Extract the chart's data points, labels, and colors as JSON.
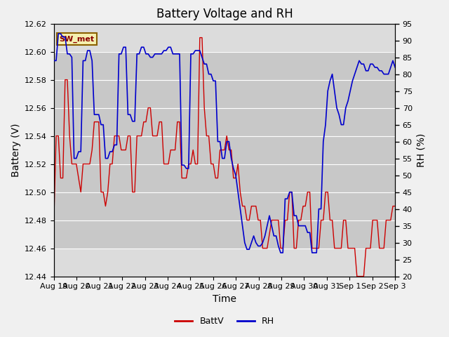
{
  "title": "Battery Voltage and RH",
  "xlabel": "Time",
  "ylabel_left": "Battery (V)",
  "ylabel_right": "RH (%)",
  "annotation": "SW_met",
  "ylim_left": [
    12.44,
    12.62
  ],
  "ylim_right": [
    20,
    95
  ],
  "yticks_left": [
    12.44,
    12.46,
    12.48,
    12.5,
    12.52,
    12.54,
    12.56,
    12.58,
    12.6,
    12.62
  ],
  "yticks_right": [
    20,
    25,
    30,
    35,
    40,
    45,
    50,
    55,
    60,
    65,
    70,
    75,
    80,
    85,
    90,
    95
  ],
  "xtick_labels": [
    "Aug 19",
    "Aug 20",
    "Aug 21",
    "Aug 22",
    "Aug 23",
    "Aug 24",
    "Aug 25",
    "Aug 26",
    "Aug 27",
    "Aug 28",
    "Aug 29",
    "Aug 30",
    "Aug 31",
    "Sep 1",
    "Sep 2",
    "Sep 3"
  ],
  "color_battv": "#cc0000",
  "color_rh": "#0000cc",
  "background_inner": "#dcdcdc",
  "background_outer": "#f0f0f0",
  "band_color": "#c8c8c8",
  "title_fontsize": 12,
  "label_fontsize": 10,
  "tick_fontsize": 8,
  "batt_data": [
    12.48,
    12.54,
    12.54,
    12.51,
    12.51,
    12.58,
    12.58,
    12.54,
    12.52,
    12.52,
    12.52,
    12.51,
    12.5,
    12.52,
    12.52,
    12.52,
    12.52,
    12.53,
    12.55,
    12.55,
    12.55,
    12.5,
    12.5,
    12.49,
    12.5,
    12.52,
    12.52,
    12.54,
    12.54,
    12.54,
    12.53,
    12.53,
    12.53,
    12.54,
    12.54,
    12.5,
    12.5,
    12.54,
    12.54,
    12.54,
    12.55,
    12.55,
    12.56,
    12.56,
    12.54,
    12.54,
    12.54,
    12.55,
    12.55,
    12.52,
    12.52,
    12.52,
    12.53,
    12.53,
    12.53,
    12.55,
    12.55,
    12.51,
    12.51,
    12.51,
    12.52,
    12.52,
    12.53,
    12.52,
    12.52,
    12.61,
    12.61,
    12.56,
    12.54,
    12.54,
    12.52,
    12.52,
    12.51,
    12.51,
    12.53,
    12.53,
    12.53,
    12.54,
    12.53,
    12.53,
    12.51,
    12.51,
    12.52,
    12.5,
    12.49,
    12.49,
    12.48,
    12.48,
    12.49,
    12.49,
    12.49,
    12.48,
    12.48,
    12.46,
    12.46,
    12.46,
    12.47,
    12.48,
    12.48,
    12.48,
    12.48,
    12.46,
    12.46,
    12.48,
    12.48,
    12.5,
    12.5,
    12.46,
    12.46,
    12.48,
    12.48,
    12.49,
    12.49,
    12.5,
    12.5,
    12.46,
    12.46,
    12.46,
    12.46,
    12.48,
    12.48,
    12.5,
    12.5,
    12.48,
    12.48,
    12.46,
    12.46,
    12.46,
    12.46,
    12.48,
    12.48,
    12.46,
    12.46,
    12.46,
    12.46,
    12.44,
    12.44,
    12.44,
    12.44,
    12.46,
    12.46,
    12.46,
    12.48,
    12.48,
    12.48,
    12.46,
    12.46,
    12.46,
    12.48,
    12.48,
    12.48,
    12.49,
    12.49
  ],
  "rh_data": [
    84,
    84,
    92,
    92,
    91,
    91,
    86,
    86,
    85,
    55,
    55,
    57,
    57,
    84,
    84,
    87,
    87,
    84,
    68,
    68,
    68,
    65,
    65,
    55,
    55,
    57,
    57,
    59,
    59,
    86,
    86,
    88,
    88,
    68,
    68,
    66,
    66,
    86,
    86,
    88,
    88,
    86,
    86,
    85,
    85,
    86,
    86,
    86,
    86,
    87,
    87,
    88,
    88,
    86,
    86,
    86,
    86,
    53,
    53,
    52,
    52,
    86,
    86,
    87,
    87,
    87,
    85,
    83,
    83,
    80,
    80,
    78,
    78,
    60,
    60,
    55,
    55,
    60,
    60,
    55,
    52,
    50,
    45,
    40,
    35,
    30,
    28,
    28,
    30,
    32,
    30,
    29,
    29,
    30,
    32,
    35,
    38,
    35,
    32,
    32,
    29,
    27,
    27,
    43,
    43,
    45,
    45,
    38,
    38,
    35,
    35,
    35,
    35,
    33,
    33,
    27,
    27,
    27,
    40,
    40,
    60,
    65,
    75,
    78,
    80,
    75,
    70,
    68,
    65,
    65,
    70,
    72,
    75,
    78,
    80,
    82,
    84,
    83,
    83,
    81,
    81,
    83,
    83,
    82,
    82,
    81,
    81,
    80,
    80,
    80,
    82,
    84,
    82
  ]
}
